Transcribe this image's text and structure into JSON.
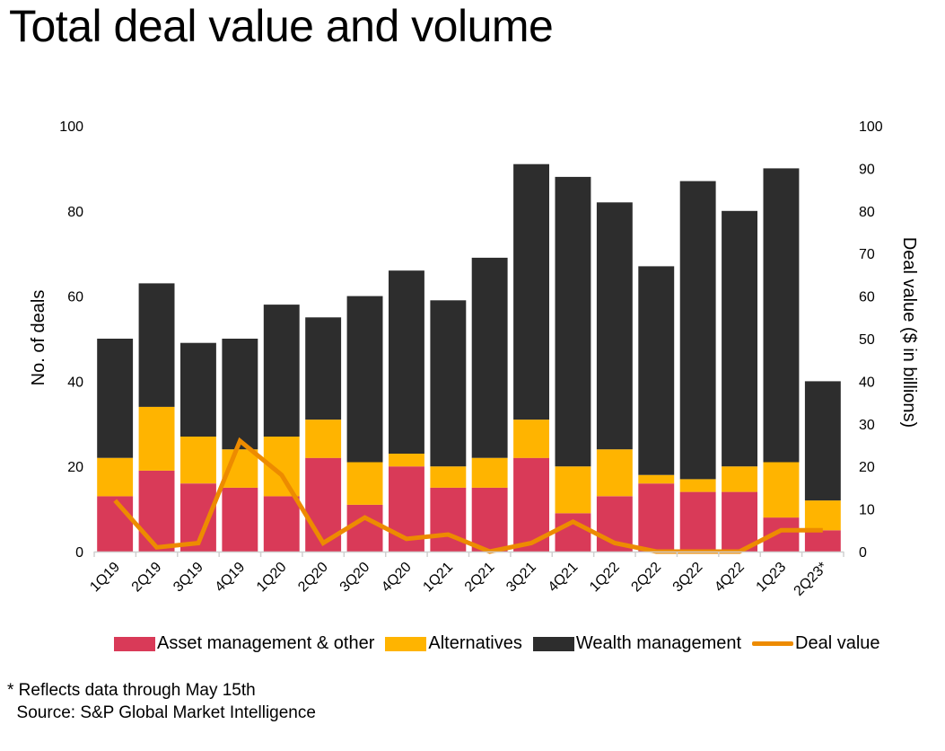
{
  "title": "Total deal value and volume",
  "footnote": {
    "note": "* Reflects data through May 15th",
    "source": "  Source: S&P Global Market Intelligence"
  },
  "legend": {
    "asset": "Asset management & other",
    "alternatives": "Alternatives",
    "wealth": "Wealth management",
    "deal_value": "Deal value"
  },
  "colors": {
    "asset": "#d93a58",
    "alternatives": "#ffb400",
    "wealth": "#2d2d2d",
    "deal_value": "#ed8b00",
    "axis": "#d0d0d0"
  },
  "chart_data": {
    "type": "bar",
    "stacked": true,
    "title": "Total deal value and volume",
    "xlabel": "",
    "ylabel": "No. of deals",
    "y2label": "Deal value ($ in billions)",
    "ylim": [
      0,
      100
    ],
    "y2lim": [
      0,
      100
    ],
    "yticks": [
      0,
      20,
      40,
      60,
      80,
      100
    ],
    "y2ticks": [
      0,
      10,
      20,
      30,
      40,
      50,
      60,
      70,
      80,
      90,
      100
    ],
    "grid": false,
    "legend_position": "bottom",
    "categories": [
      "1Q19",
      "2Q19",
      "3Q19",
      "4Q19",
      "1Q20",
      "2Q20",
      "3Q20",
      "4Q20",
      "1Q21",
      "2Q21",
      "3Q21",
      "4Q21",
      "1Q22",
      "2Q22",
      "3Q22",
      "4Q22",
      "1Q23",
      "2Q23*"
    ],
    "series": [
      {
        "name": "Asset management & other",
        "type": "bar",
        "axis": "left",
        "values": [
          13,
          19,
          16,
          15,
          13,
          22,
          11,
          20,
          15,
          15,
          22,
          9,
          13,
          16,
          14,
          14,
          8,
          5
        ]
      },
      {
        "name": "Alternatives",
        "type": "bar",
        "axis": "left",
        "values": [
          9,
          15,
          11,
          9,
          14,
          9,
          10,
          3,
          5,
          7,
          9,
          11,
          11,
          2,
          3,
          6,
          13,
          7
        ]
      },
      {
        "name": "Wealth management",
        "type": "bar",
        "axis": "left",
        "values": [
          28,
          29,
          22,
          26,
          31,
          24,
          39,
          43,
          39,
          47,
          60,
          68,
          58,
          49,
          70,
          60,
          69,
          28
        ]
      },
      {
        "name": "Deal value",
        "type": "line",
        "axis": "right",
        "values": [
          12,
          1,
          2,
          26,
          18,
          2,
          8,
          3,
          4,
          0,
          2,
          7,
          2,
          0,
          0,
          0,
          5,
          5
        ]
      }
    ]
  }
}
